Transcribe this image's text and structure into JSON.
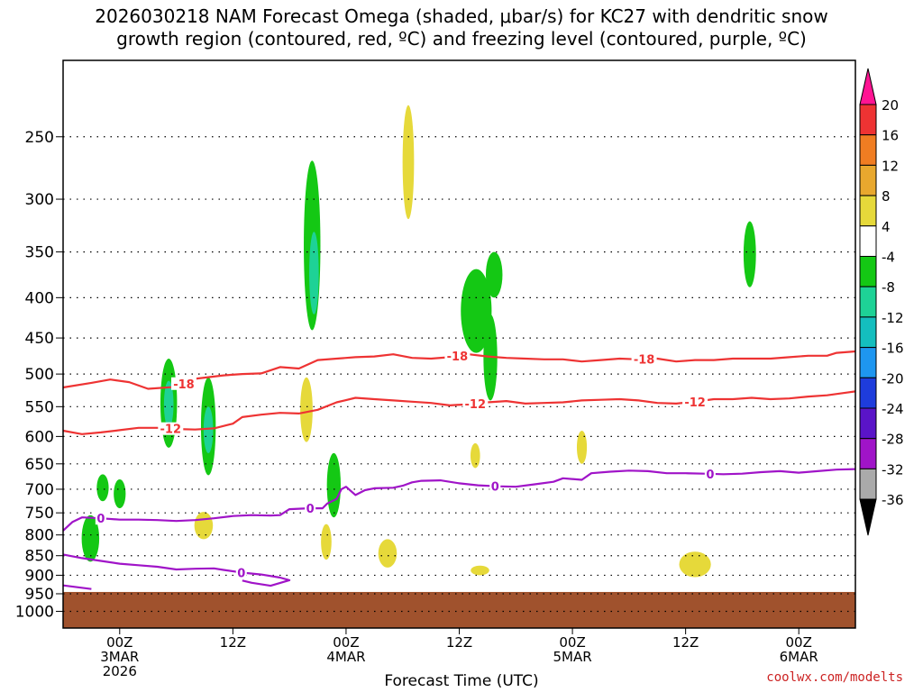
{
  "title": {
    "line1": "2026030218 NAM Forecast Omega (shaded, μbar/s) for KC27 with dendritic snow",
    "line2": "growth region (contoured, red, ºC) and freezing level (contoured, purple, ºC)"
  },
  "credit": "coolwx.com/modelts",
  "chart_data": {
    "type": "time-height cross section",
    "xlabel": "Forecast Time (UTC)",
    "x_ticks": [
      {
        "hour": 6,
        "lines": [
          "00Z",
          "3MAR",
          "2026"
        ]
      },
      {
        "hour": 18,
        "lines": [
          "12Z"
        ]
      },
      {
        "hour": 30,
        "lines": [
          "00Z",
          "4MAR"
        ]
      },
      {
        "hour": 42,
        "lines": [
          "12Z"
        ]
      },
      {
        "hour": 54,
        "lines": [
          "00Z",
          "5MAR"
        ]
      },
      {
        "hour": 66,
        "lines": [
          "12Z"
        ]
      },
      {
        "hour": 78,
        "lines": [
          "00Z",
          "6MAR"
        ]
      }
    ],
    "xlim": [
      0,
      84
    ],
    "y_ticks": [
      250,
      300,
      350,
      400,
      450,
      500,
      550,
      600,
      650,
      700,
      750,
      800,
      850,
      900,
      950,
      1000
    ],
    "ylim": [
      1050,
      200
    ],
    "y_scale": "log-pressure",
    "grid": true,
    "colorbar": {
      "labels": [
        "20",
        "16",
        "12",
        "8",
        "4",
        "-4",
        "-8",
        "-12",
        "-16",
        "-20",
        "-24",
        "-28",
        "-32",
        "-36"
      ],
      "colors": [
        "#ff1493",
        "#ee3333",
        "#f07d22",
        "#e8a82e",
        "#e6d93a",
        "#ffffff",
        "#14c814",
        "#1ed296",
        "#14bebe",
        "#1e96f0",
        "#1e3cdc",
        "#5a14c8",
        "#a014c8",
        "#aaaaaa",
        "#000000"
      ]
    },
    "terrain": {
      "color": "#a0522d",
      "top_pressure": 945
    },
    "contours": [
      {
        "name": "dendritic -18",
        "color": "#ee3333",
        "value": -18,
        "points": [
          [
            0,
            520
          ],
          [
            3,
            513
          ],
          [
            5,
            508
          ],
          [
            7,
            512
          ],
          [
            9,
            522
          ],
          [
            12,
            519
          ],
          [
            14,
            507
          ],
          [
            17,
            502
          ],
          [
            19,
            500
          ],
          [
            21,
            499
          ],
          [
            23,
            490
          ],
          [
            25,
            492
          ],
          [
            27,
            480
          ],
          [
            29,
            478
          ],
          [
            31,
            476
          ],
          [
            33,
            475
          ],
          [
            35,
            472
          ],
          [
            37,
            477
          ],
          [
            39,
            478
          ],
          [
            41,
            476
          ],
          [
            43,
            472
          ],
          [
            45,
            475
          ],
          [
            47,
            477
          ],
          [
            49,
            478
          ],
          [
            51,
            479
          ],
          [
            53,
            479
          ],
          [
            55,
            482
          ],
          [
            57,
            480
          ],
          [
            59,
            478
          ],
          [
            61,
            479
          ],
          [
            63,
            478
          ],
          [
            65,
            482
          ],
          [
            67,
            480
          ],
          [
            69,
            480
          ],
          [
            71,
            478
          ],
          [
            73,
            478
          ],
          [
            75,
            478
          ],
          [
            77,
            476
          ],
          [
            79,
            474
          ],
          [
            81,
            474
          ],
          [
            82,
            470
          ],
          [
            84,
            468
          ]
        ],
        "labels": [
          {
            "x": 12.8,
            "text": "-18"
          },
          {
            "x": 41.8,
            "text": "-18"
          },
          {
            "x": 61.6,
            "text": "-18"
          }
        ]
      },
      {
        "name": "dendritic -12",
        "color": "#ee3333",
        "value": -12,
        "points": [
          [
            0,
            590
          ],
          [
            2,
            596
          ],
          [
            4,
            593
          ],
          [
            6,
            589
          ],
          [
            8,
            585
          ],
          [
            10,
            585
          ],
          [
            12,
            587
          ],
          [
            14,
            588
          ],
          [
            16,
            586
          ],
          [
            18,
            578
          ],
          [
            19,
            567
          ],
          [
            21,
            563
          ],
          [
            23,
            560
          ],
          [
            25,
            561
          ],
          [
            27,
            555
          ],
          [
            29,
            543
          ],
          [
            31,
            536
          ],
          [
            33,
            538
          ],
          [
            35,
            540
          ],
          [
            37,
            542
          ],
          [
            39,
            544
          ],
          [
            41,
            548
          ],
          [
            43,
            546
          ],
          [
            45,
            543
          ],
          [
            47,
            541
          ],
          [
            49,
            545
          ],
          [
            51,
            544
          ],
          [
            53,
            543
          ],
          [
            55,
            540
          ],
          [
            57,
            539
          ],
          [
            59,
            538
          ],
          [
            61,
            540
          ],
          [
            63,
            544
          ],
          [
            65,
            545
          ],
          [
            67,
            542
          ],
          [
            69,
            538
          ],
          [
            71,
            538
          ],
          [
            73,
            536
          ],
          [
            75,
            538
          ],
          [
            77,
            537
          ],
          [
            79,
            534
          ],
          [
            81,
            532
          ],
          [
            83,
            528
          ],
          [
            84,
            526
          ]
        ],
        "labels": [
          {
            "x": 11.4,
            "text": "-12"
          },
          {
            "x": 43.7,
            "text": "-12"
          },
          {
            "x": 67,
            "text": "-12"
          }
        ]
      },
      {
        "name": "freezing 0 upper",
        "color": "#a014c8",
        "value": 0,
        "points": [
          [
            0,
            790
          ],
          [
            1,
            770
          ],
          [
            2,
            760
          ],
          [
            4,
            762
          ],
          [
            6,
            765
          ],
          [
            8,
            765
          ],
          [
            10,
            766
          ],
          [
            12,
            768
          ],
          [
            14,
            766
          ],
          [
            16,
            762
          ],
          [
            18,
            757
          ],
          [
            20,
            755
          ],
          [
            22,
            756
          ],
          [
            23,
            755
          ],
          [
            24,
            742
          ],
          [
            26,
            740
          ],
          [
            27.5,
            740
          ],
          [
            28,
            730
          ],
          [
            29,
            720
          ],
          [
            29.5,
            700
          ],
          [
            30,
            695
          ],
          [
            31,
            712
          ],
          [
            32,
            702
          ],
          [
            33,
            698
          ],
          [
            35,
            697
          ],
          [
            36,
            693
          ],
          [
            37,
            686
          ],
          [
            38,
            683
          ],
          [
            40,
            682
          ],
          [
            42,
            688
          ],
          [
            44,
            692
          ],
          [
            46,
            694
          ],
          [
            48,
            695
          ],
          [
            50,
            690
          ],
          [
            52,
            685
          ],
          [
            53,
            678
          ],
          [
            55,
            681
          ],
          [
            56,
            668
          ],
          [
            58,
            665
          ],
          [
            60,
            663
          ],
          [
            62,
            664
          ],
          [
            64,
            668
          ],
          [
            66,
            668
          ],
          [
            68,
            669
          ],
          [
            70,
            670
          ],
          [
            72,
            669
          ],
          [
            74,
            666
          ],
          [
            76,
            664
          ],
          [
            78,
            667
          ],
          [
            80,
            664
          ],
          [
            82,
            661
          ],
          [
            84,
            660
          ]
        ],
        "labels": [
          {
            "x": 4,
            "text": "0"
          },
          {
            "x": 26.2,
            "text": "0"
          },
          {
            "x": 45.8,
            "text": "0"
          },
          {
            "x": 68.6,
            "text": "0"
          }
        ]
      },
      {
        "name": "freezing 0 lower",
        "color": "#a014c8",
        "value": 0,
        "points": [
          [
            0,
            847
          ],
          [
            2,
            856
          ],
          [
            4,
            863
          ],
          [
            6,
            870
          ],
          [
            8,
            874
          ],
          [
            10,
            878
          ],
          [
            12,
            885
          ],
          [
            14,
            883
          ],
          [
            16,
            882
          ],
          [
            17,
            886
          ],
          [
            19,
            893
          ],
          [
            21,
            898
          ],
          [
            23,
            906
          ],
          [
            24,
            913
          ],
          [
            22,
            928
          ],
          [
            20,
            920
          ],
          [
            19,
            914
          ]
        ],
        "labels": [
          {
            "x": 18.9,
            "text": "0"
          }
        ]
      },
      {
        "name": "freezing 0 surface",
        "color": "#a014c8",
        "value": 0,
        "points": [
          [
            0,
            927
          ],
          [
            3,
            937
          ]
        ]
      }
    ],
    "shaded_regions": [
      {
        "range": "-8..-4",
        "color": "#14c814",
        "x": 26.4,
        "p": [
          268,
          440
        ],
        "w": 1.0
      },
      {
        "range": "-12..-8",
        "color": "#1ed296",
        "x": 26.6,
        "p": [
          330,
          420
        ],
        "w": 0.25
      },
      {
        "range": "4..8",
        "color": "#e6d93a",
        "x": 36.6,
        "p": [
          228,
          318
        ],
        "w": 0.45
      },
      {
        "range": "-8..-4",
        "color": "#14c814",
        "x": 43.8,
        "p": [
          368,
          470
        ],
        "w": 2.5
      },
      {
        "range": "-8..-4",
        "color": "#14c814",
        "x": 45.7,
        "p": [
          350,
          400
        ],
        "w": 1.0
      },
      {
        "range": "-8..-4",
        "color": "#14c814",
        "x": 45.3,
        "p": [
          420,
          540
        ],
        "w": 0.7
      },
      {
        "range": "-8..-4",
        "color": "#14c814",
        "x": 72.8,
        "p": [
          320,
          388
        ],
        "w": 0.55
      },
      {
        "range": "-8..-4",
        "color": "#14c814",
        "x": 11.2,
        "p": [
          478,
          620
        ],
        "w": 1.0
      },
      {
        "range": "-12..-8",
        "color": "#1ed296",
        "x": 11.2,
        "p": [
          510,
          585
        ],
        "w": 0.25
      },
      {
        "range": "-8..-4",
        "color": "#14c814",
        "x": 15.4,
        "p": [
          505,
          672
        ],
        "w": 0.8
      },
      {
        "range": "-12..-8",
        "color": "#1ed296",
        "x": 15.4,
        "p": [
          550,
          630
        ],
        "w": 0.25
      },
      {
        "range": "4..8",
        "color": "#e6d93a",
        "x": 25.8,
        "p": [
          505,
          610
        ],
        "w": 0.55
      },
      {
        "range": "-8..-4",
        "color": "#14c814",
        "x": 28.7,
        "p": [
          630,
          760
        ],
        "w": 0.7
      },
      {
        "range": "4..8",
        "color": "#e6d93a",
        "x": 43.7,
        "p": [
          612,
          658
        ],
        "w": 0.25
      },
      {
        "range": "4..8",
        "color": "#e6d93a",
        "x": 55.0,
        "p": [
          590,
          650
        ],
        "w": 0.3
      },
      {
        "range": "-8..-4",
        "color": "#14c814",
        "x": 4.2,
        "p": [
          670,
          725
        ],
        "w": 0.5
      },
      {
        "range": "-8..-4",
        "color": "#14c814",
        "x": 6.0,
        "p": [
          680,
          740
        ],
        "w": 0.5
      },
      {
        "range": "-8..-4",
        "color": "#14c814",
        "x": 2.9,
        "p": [
          755,
          865
        ],
        "w": 1.1
      },
      {
        "range": "4..8",
        "color": "#e6d93a",
        "x": 14.9,
        "p": [
          748,
          810
        ],
        "w": 1.2
      },
      {
        "range": "4..8",
        "color": "#e6d93a",
        "x": 27.9,
        "p": [
          775,
          860
        ],
        "w": 0.35
      },
      {
        "range": "4..8",
        "color": "#e6d93a",
        "x": 34.4,
        "p": [
          810,
          880
        ],
        "w": 1.2
      },
      {
        "range": "4..8",
        "color": "#e6d93a",
        "x": 44.2,
        "p": [
          875,
          900
        ],
        "w": 1.2
      },
      {
        "range": "4..8",
        "color": "#e6d93a",
        "x": 67.0,
        "p": [
          840,
          905
        ],
        "w": 2.6
      }
    ]
  }
}
